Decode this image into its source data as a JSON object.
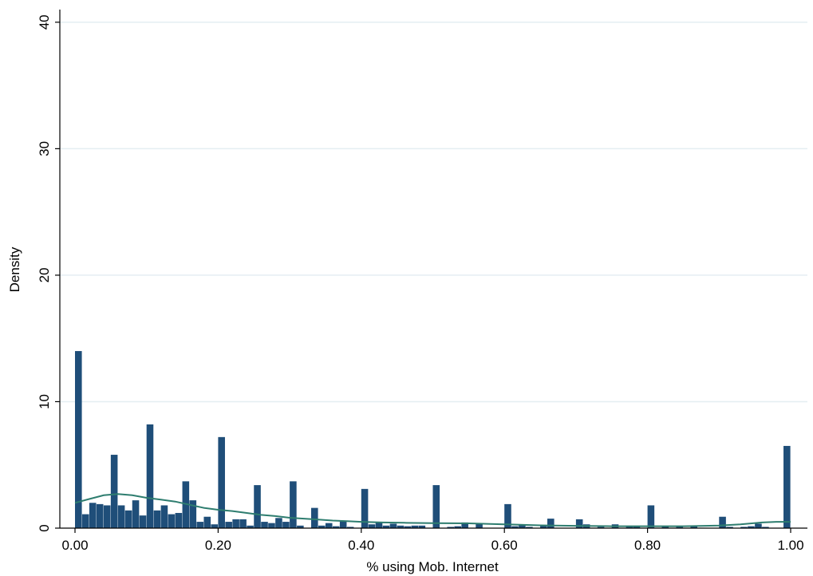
{
  "chart_data": {
    "type": "bar",
    "title": "",
    "xlabel": "% using Mob. Internet",
    "ylabel": "Density",
    "xlim": [
      -0.02,
      1.02
    ],
    "ylim": [
      0,
      41
    ],
    "x_ticks": [
      "0.00",
      "0.20",
      "0.40",
      "0.60",
      "0.80",
      "1.00"
    ],
    "y_ticks": [
      "0",
      "10",
      "20",
      "30",
      "40"
    ],
    "grid": true,
    "bin_width": 0.01,
    "bins": [
      {
        "x": 0.0,
        "v": 14.0
      },
      {
        "x": 0.01,
        "v": 1.1
      },
      {
        "x": 0.02,
        "v": 2.0
      },
      {
        "x": 0.03,
        "v": 1.9
      },
      {
        "x": 0.04,
        "v": 1.8
      },
      {
        "x": 0.05,
        "v": 5.8
      },
      {
        "x": 0.06,
        "v": 1.8
      },
      {
        "x": 0.07,
        "v": 1.4
      },
      {
        "x": 0.08,
        "v": 2.2
      },
      {
        "x": 0.09,
        "v": 1.0
      },
      {
        "x": 0.1,
        "v": 8.2
      },
      {
        "x": 0.11,
        "v": 1.4
      },
      {
        "x": 0.12,
        "v": 1.8
      },
      {
        "x": 0.13,
        "v": 1.1
      },
      {
        "x": 0.14,
        "v": 1.2
      },
      {
        "x": 0.15,
        "v": 3.7
      },
      {
        "x": 0.16,
        "v": 2.2
      },
      {
        "x": 0.17,
        "v": 0.5
      },
      {
        "x": 0.18,
        "v": 0.9
      },
      {
        "x": 0.19,
        "v": 0.3
      },
      {
        "x": 0.2,
        "v": 7.2
      },
      {
        "x": 0.21,
        "v": 0.5
      },
      {
        "x": 0.22,
        "v": 0.7
      },
      {
        "x": 0.23,
        "v": 0.7
      },
      {
        "x": 0.24,
        "v": 0.2
      },
      {
        "x": 0.25,
        "v": 3.4
      },
      {
        "x": 0.26,
        "v": 0.5
      },
      {
        "x": 0.27,
        "v": 0.4
      },
      {
        "x": 0.28,
        "v": 0.8
      },
      {
        "x": 0.29,
        "v": 0.5
      },
      {
        "x": 0.3,
        "v": 3.7
      },
      {
        "x": 0.31,
        "v": 0.2
      },
      {
        "x": 0.33,
        "v": 1.6
      },
      {
        "x": 0.34,
        "v": 0.2
      },
      {
        "x": 0.35,
        "v": 0.4
      },
      {
        "x": 0.36,
        "v": 0.15
      },
      {
        "x": 0.37,
        "v": 0.6
      },
      {
        "x": 0.38,
        "v": 0.1
      },
      {
        "x": 0.4,
        "v": 3.1
      },
      {
        "x": 0.41,
        "v": 0.3
      },
      {
        "x": 0.42,
        "v": 0.5
      },
      {
        "x": 0.43,
        "v": 0.2
      },
      {
        "x": 0.44,
        "v": 0.35
      },
      {
        "x": 0.45,
        "v": 0.2
      },
      {
        "x": 0.46,
        "v": 0.15
      },
      {
        "x": 0.47,
        "v": 0.2
      },
      {
        "x": 0.48,
        "v": 0.2
      },
      {
        "x": 0.5,
        "v": 3.4
      },
      {
        "x": 0.52,
        "v": 0.1
      },
      {
        "x": 0.53,
        "v": 0.15
      },
      {
        "x": 0.54,
        "v": 0.45
      },
      {
        "x": 0.56,
        "v": 0.4
      },
      {
        "x": 0.6,
        "v": 1.9
      },
      {
        "x": 0.61,
        "v": 0.15
      },
      {
        "x": 0.62,
        "v": 0.3
      },
      {
        "x": 0.63,
        "v": 0.1
      },
      {
        "x": 0.65,
        "v": 0.2
      },
      {
        "x": 0.66,
        "v": 0.75
      },
      {
        "x": 0.7,
        "v": 0.7
      },
      {
        "x": 0.71,
        "v": 0.3
      },
      {
        "x": 0.73,
        "v": 0.1
      },
      {
        "x": 0.75,
        "v": 0.3
      },
      {
        "x": 0.77,
        "v": 0.1
      },
      {
        "x": 0.78,
        "v": 0.15
      },
      {
        "x": 0.8,
        "v": 1.8
      },
      {
        "x": 0.82,
        "v": 0.1
      },
      {
        "x": 0.84,
        "v": 0.15
      },
      {
        "x": 0.86,
        "v": 0.15
      },
      {
        "x": 0.9,
        "v": 0.9
      },
      {
        "x": 0.91,
        "v": 0.1
      },
      {
        "x": 0.93,
        "v": 0.1
      },
      {
        "x": 0.94,
        "v": 0.15
      },
      {
        "x": 0.95,
        "v": 0.35
      },
      {
        "x": 0.96,
        "v": 0.1
      },
      {
        "x": 0.99,
        "v": 6.5
      }
    ],
    "density_curve": [
      [
        0.0,
        2.0
      ],
      [
        0.02,
        2.3
      ],
      [
        0.04,
        2.6
      ],
      [
        0.06,
        2.7
      ],
      [
        0.08,
        2.6
      ],
      [
        0.1,
        2.4
      ],
      [
        0.12,
        2.25
      ],
      [
        0.14,
        2.1
      ],
      [
        0.16,
        1.85
      ],
      [
        0.18,
        1.6
      ],
      [
        0.2,
        1.45
      ],
      [
        0.22,
        1.35
      ],
      [
        0.24,
        1.2
      ],
      [
        0.26,
        1.05
      ],
      [
        0.28,
        0.95
      ],
      [
        0.3,
        0.82
      ],
      [
        0.32,
        0.75
      ],
      [
        0.34,
        0.68
      ],
      [
        0.36,
        0.6
      ],
      [
        0.38,
        0.55
      ],
      [
        0.4,
        0.5
      ],
      [
        0.43,
        0.45
      ],
      [
        0.46,
        0.42
      ],
      [
        0.5,
        0.4
      ],
      [
        0.55,
        0.38
      ],
      [
        0.6,
        0.3
      ],
      [
        0.65,
        0.22
      ],
      [
        0.7,
        0.18
      ],
      [
        0.75,
        0.15
      ],
      [
        0.8,
        0.15
      ],
      [
        0.85,
        0.15
      ],
      [
        0.88,
        0.18
      ],
      [
        0.9,
        0.2
      ],
      [
        0.93,
        0.3
      ],
      [
        0.96,
        0.45
      ],
      [
        0.98,
        0.5
      ],
      [
        1.0,
        0.5
      ]
    ],
    "colors": {
      "bar": "#1f4e79",
      "curve": "#2e7d6f",
      "grid": "#e4eef2",
      "axis": "#000000"
    }
  }
}
